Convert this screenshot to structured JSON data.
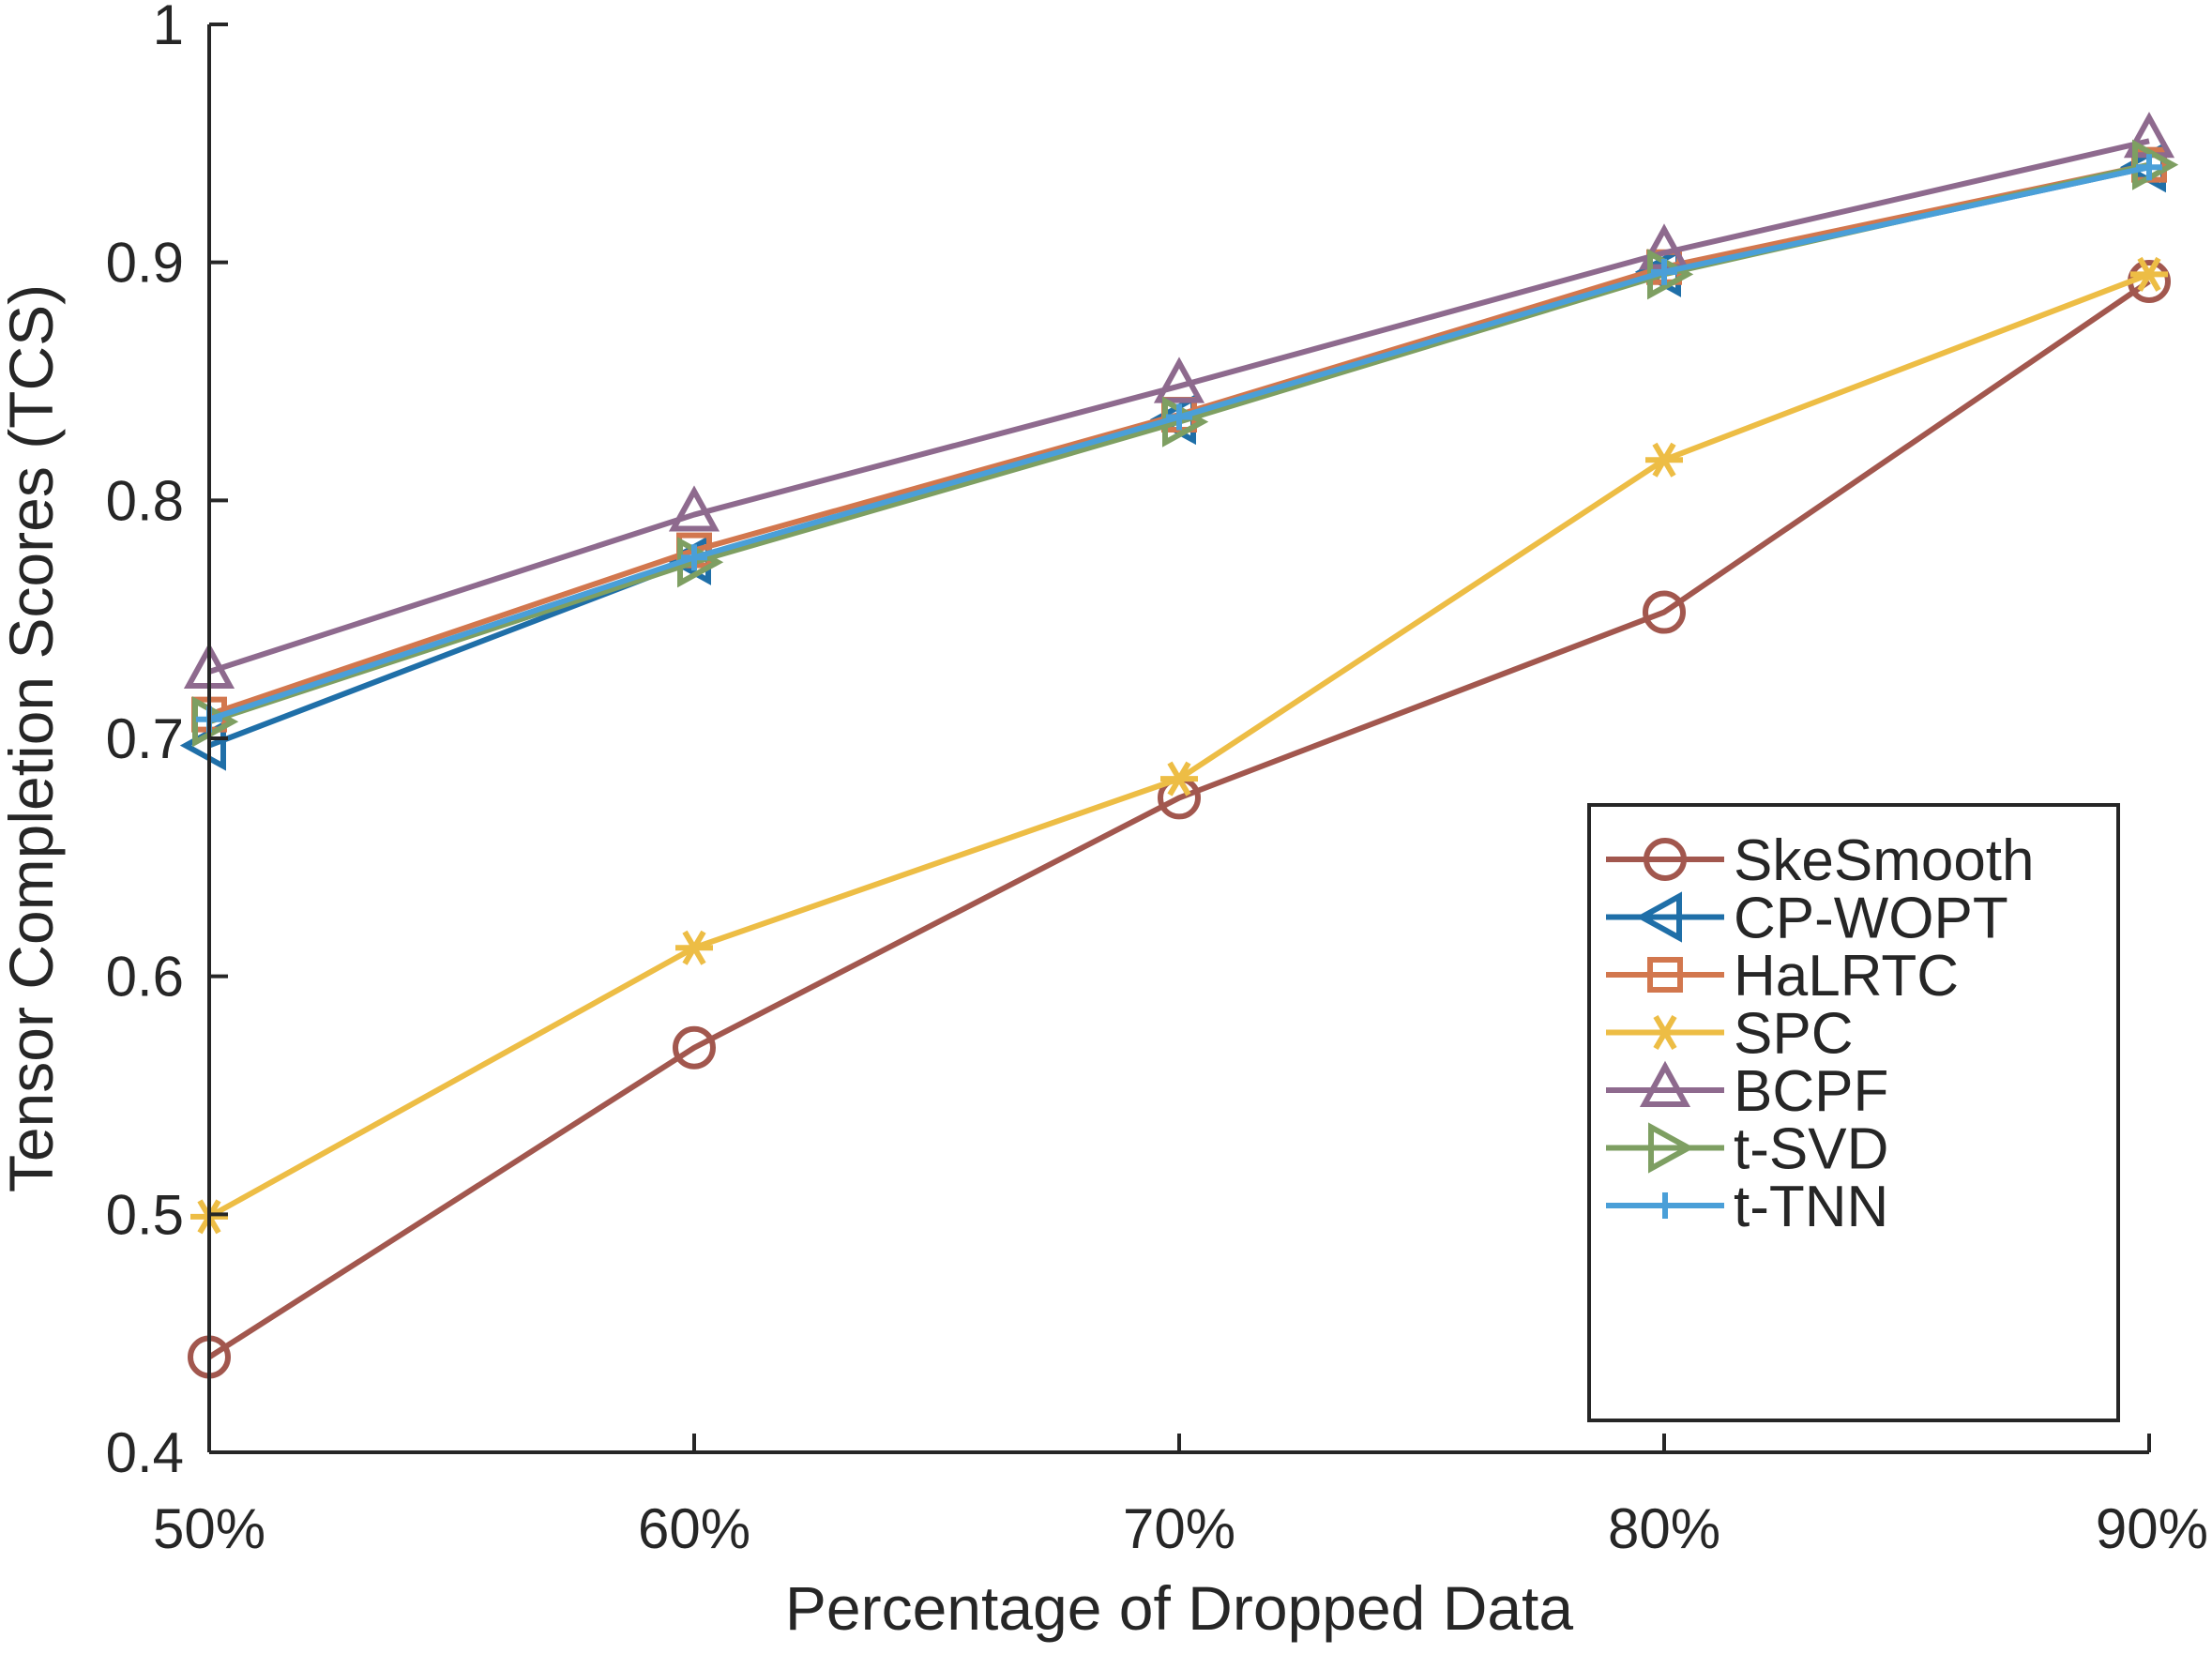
{
  "chart_data": {
    "type": "line",
    "title": "",
    "xlabel": "Percentage of Dropped Data",
    "ylabel": "Tensor Completion Scores (TCS)",
    "categories": [
      "50%",
      "60%",
      "70%",
      "80%",
      "90%"
    ],
    "ylim": [
      0.4,
      1
    ],
    "yticks": [
      0.4,
      0.5,
      0.6,
      0.7,
      0.8,
      0.9,
      1
    ],
    "ytick_labels": [
      "0.4",
      "0.5",
      "0.6",
      "0.7",
      "0.8",
      "0.9",
      "1"
    ],
    "grid": false,
    "legend_position": "bottom-right",
    "series": [
      {
        "name": "SkeSmooth",
        "color": "#A2574E",
        "marker": "circle",
        "values": [
          0.44,
          0.57,
          0.675,
          0.753,
          0.892
        ]
      },
      {
        "name": "CP-WOPT",
        "color": "#1F6FA8",
        "marker": "triangle-left",
        "values": [
          0.697,
          0.775,
          0.834,
          0.896,
          0.94
        ]
      },
      {
        "name": "HaLRTC",
        "color": "#D2774E",
        "marker": "square",
        "values": [
          0.71,
          0.779,
          0.836,
          0.898,
          0.941
        ]
      },
      {
        "name": "SPC",
        "color": "#EDBD45",
        "marker": "asterisk",
        "values": [
          0.499,
          0.612,
          0.683,
          0.817,
          0.895
        ]
      },
      {
        "name": "BCPF",
        "color": "#8E6A8E",
        "marker": "triangle-up",
        "values": [
          0.728,
          0.794,
          0.848,
          0.904,
          0.951
        ]
      },
      {
        "name": "t-SVD",
        "color": "#7E9F62",
        "marker": "triangle-right",
        "values": [
          0.707,
          0.774,
          0.833,
          0.895,
          0.941
        ]
      },
      {
        "name": "t-TNN",
        "color": "#4A9FD8",
        "marker": "plus",
        "values": [
          0.708,
          0.776,
          0.835,
          0.896,
          0.94
        ]
      }
    ]
  }
}
